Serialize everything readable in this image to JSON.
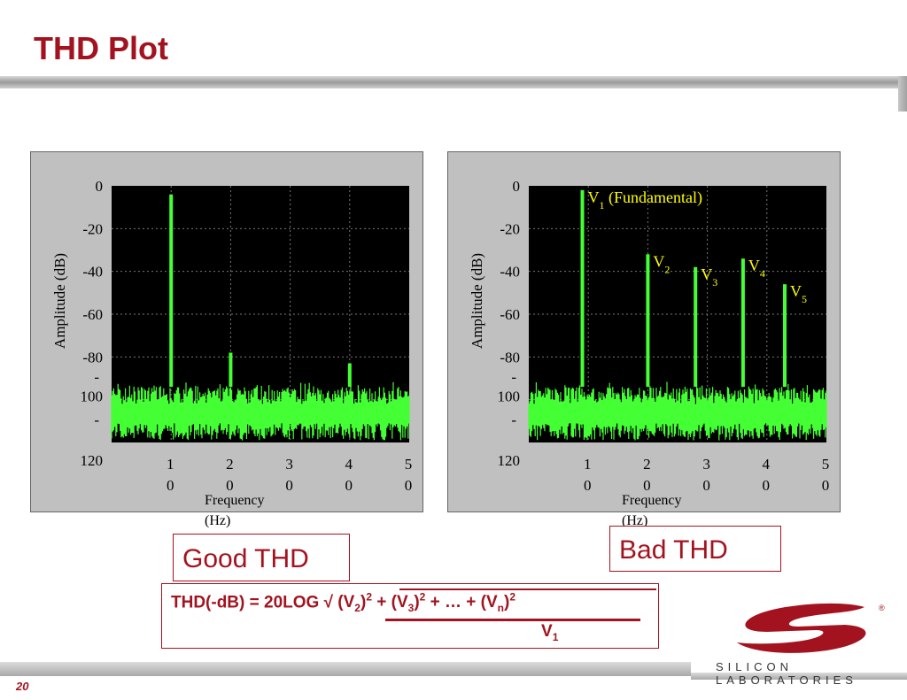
{
  "slide": {
    "title": "THD Plot",
    "page_number": "20",
    "brand_name": "SILICON LABORATORIES",
    "registered_mark": "®",
    "accent_color": "#a3131f"
  },
  "labels": {
    "good": "Good THD",
    "bad": "Bad THD"
  },
  "formula": {
    "lhs": "THD(-dB) = 20LOG √ ",
    "numerator_terms": [
      {
        "base": "(V",
        "sub": "2",
        "close": ")",
        "sup": "2",
        "sep": " + "
      },
      {
        "base": "(V",
        "sub": "3",
        "close": ")",
        "sup": "2",
        "sep": " + … + "
      },
      {
        "base": "(V",
        "sub": "n",
        "close": ")",
        "sup": "2",
        "sep": ""
      }
    ],
    "denominator_base": "V",
    "denominator_sub": "1"
  },
  "chart_data": [
    {
      "type": "bar",
      "title": "",
      "xlabel": "Frequency (Hz)",
      "ylabel": "Amplitude (dB)",
      "ylim": [
        -120,
        0
      ],
      "xlim": [
        0,
        50
      ],
      "y_ticks": [
        "0",
        "-20",
        "-40",
        "-60",
        "-80",
        "-100",
        "-120"
      ],
      "x_ticks": [
        "10",
        "20",
        "30",
        "40",
        "50"
      ],
      "grid": true,
      "line_color": "#44ff33",
      "background_color": "#000000",
      "noise_floor_db": [
        -94,
        -119
      ],
      "peaks": [
        {
          "x": 10,
          "y": -4,
          "label": ""
        },
        {
          "x": 20,
          "y": -78,
          "label": ""
        },
        {
          "x": 40,
          "y": -83,
          "label": ""
        }
      ]
    },
    {
      "type": "bar",
      "title": "",
      "xlabel": "Frequency (Hz)",
      "ylabel": "Amplitude (dB)",
      "ylim": [
        -120,
        0
      ],
      "xlim": [
        0,
        50
      ],
      "y_ticks": [
        "0",
        "-20",
        "-40",
        "-60",
        "-80",
        "-100",
        "-120"
      ],
      "x_ticks": [
        "10",
        "20",
        "30",
        "40",
        "50"
      ],
      "grid": true,
      "line_color": "#44ff33",
      "background_color": "#000000",
      "annotation_color": "#ffff00",
      "noise_floor_db": [
        -94,
        -119
      ],
      "peaks": [
        {
          "x": 9,
          "y": -2,
          "label": "V",
          "label_sub": "1",
          "label_suffix": " (Fundamental)"
        },
        {
          "x": 20,
          "y": -32,
          "label": "V",
          "label_sub": "2",
          "label_suffix": ""
        },
        {
          "x": 28,
          "y": -38,
          "label": "V",
          "label_sub": "3",
          "label_suffix": ""
        },
        {
          "x": 36,
          "y": -34,
          "label": "V",
          "label_sub": "4",
          "label_suffix": ""
        },
        {
          "x": 43,
          "y": -46,
          "label": "V",
          "label_sub": "5",
          "label_suffix": ""
        }
      ]
    }
  ]
}
